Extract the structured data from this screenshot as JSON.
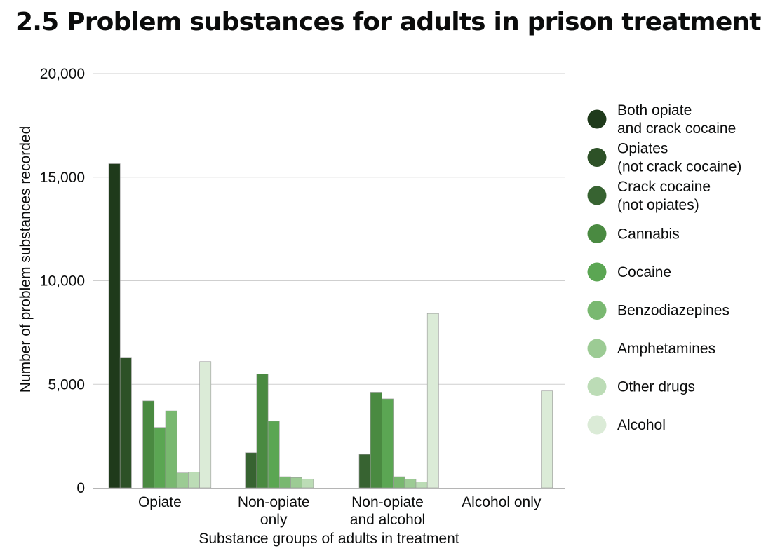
{
  "chart_data": {
    "type": "bar",
    "title": "2.5 Problem substances for adults in prison treatment",
    "xlabel": "Substance groups of adults in treatment",
    "ylabel": "Number of problem substances recorded",
    "ylim": [
      0,
      20000
    ],
    "yticks": [
      0,
      5000,
      10000,
      15000,
      20000
    ],
    "ytick_labels": [
      "0",
      "5,000",
      "10,000",
      "15,000",
      "20,000"
    ],
    "grid": true,
    "legend_position": "right",
    "categories": [
      [
        "Opiate"
      ],
      [
        "Non-opiate",
        "only"
      ],
      [
        "Non-opiate",
        "and alcohol"
      ],
      [
        "Alcohol only"
      ]
    ],
    "series": [
      {
        "name": [
          "Both opiate",
          "and crack cocaine"
        ],
        "color": "#1f3a1b",
        "values": [
          15650,
          0,
          0,
          0
        ]
      },
      {
        "name": [
          "Opiates",
          "(not crack cocaine)"
        ],
        "color": "#2d5127",
        "values": [
          6300,
          0,
          0,
          0
        ]
      },
      {
        "name": [
          "Crack cocaine",
          "(not opiates)"
        ],
        "color": "#376331",
        "values": [
          0,
          1700,
          1620,
          0
        ]
      },
      {
        "name": [
          "Cannabis"
        ],
        "color": "#4a8a41",
        "values": [
          4200,
          5500,
          4620,
          0
        ]
      },
      {
        "name": [
          "Cocaine"
        ],
        "color": "#5ba653",
        "values": [
          2920,
          3220,
          4300,
          0
        ]
      },
      {
        "name": [
          "Benzodiazepines"
        ],
        "color": "#79b870",
        "values": [
          3720,
          540,
          540,
          0
        ]
      },
      {
        "name": [
          "Amphetamines"
        ],
        "color": "#9ccb94",
        "values": [
          720,
          500,
          430,
          0
        ]
      },
      {
        "name": [
          "Other drugs"
        ],
        "color": "#bcdcb6",
        "values": [
          760,
          430,
          290,
          0
        ]
      },
      {
        "name": [
          "Alcohol"
        ],
        "color": "#dbebd7",
        "values": [
          6100,
          0,
          8420,
          4680
        ]
      }
    ]
  }
}
